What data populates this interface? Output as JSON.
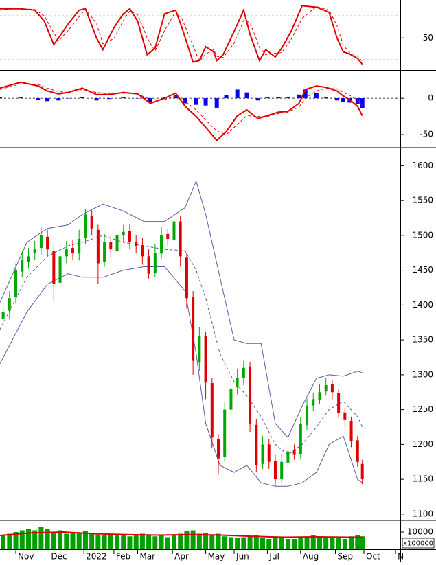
{
  "chart_data": [
    {
      "type": "line",
      "xlim": [
        0,
        253
      ],
      "ylim": [
        8,
        100
      ],
      "yticks": [
        50
      ],
      "reference_lines": [
        20,
        80
      ],
      "x": [
        0,
        9,
        13,
        22,
        28,
        34,
        37,
        43,
        50,
        54,
        61,
        65,
        72,
        78,
        82,
        87,
        93,
        98,
        104,
        111,
        115,
        122,
        126,
        130,
        135,
        137,
        141,
        148,
        154,
        158,
        164,
        168,
        174,
        178,
        184,
        191,
        200,
        208,
        213,
        217,
        221,
        226,
        229
      ],
      "series": [
        {
          "color": "#e00000",
          "style": "solid",
          "values": [
            90,
            90,
            90,
            88,
            73,
            41,
            50,
            69,
            88,
            90,
            50,
            34,
            64,
            83,
            90,
            73,
            27,
            36,
            83,
            88,
            64,
            17,
            19,
            38,
            31,
            19,
            27,
            59,
            88,
            55,
            19,
            34,
            24,
            36,
            59,
            94,
            92,
            85,
            50,
            31,
            28,
            22,
            14
          ]
        },
        {
          "color": "#e00000",
          "style": "dashed",
          "values": [
            88,
            90,
            90,
            89,
            80,
            57,
            46,
            60,
            79,
            89,
            70,
            42,
            49,
            74,
            87,
            82,
            50,
            32,
            60,
            86,
            76,
            40,
            18,
            28,
            34,
            25,
            23,
            43,
            74,
            71,
            37,
            27,
            29,
            30,
            48,
            77,
            93,
            88,
            67,
            40,
            30,
            25,
            18
          ]
        }
      ]
    },
    {
      "type": "combo",
      "xlim": [
        0,
        253
      ],
      "ylim": [
        -66,
        36
      ],
      "yticks": [
        0,
        -50
      ],
      "reference_lines": [
        0
      ],
      "x": [
        0,
        13,
        24,
        30,
        37,
        43,
        52,
        61,
        69,
        78,
        87,
        95,
        104,
        111,
        117,
        124,
        130,
        137,
        143,
        150,
        156,
        163,
        169,
        176,
        182,
        189,
        193,
        200,
        206,
        213,
        217,
        221,
        226,
        229
      ],
      "series": [
        {
          "type": "bar",
          "color": "#0000ff",
          "values": [
            2,
            2,
            -2,
            -4,
            -3,
            0,
            2,
            -3,
            -1,
            1,
            0,
            -5,
            2,
            4,
            -7,
            -9,
            -10,
            -13,
            4,
            12,
            8,
            -3,
            1,
            2,
            1,
            5,
            12,
            7,
            1,
            -3,
            -5,
            -6,
            -8,
            -14
          ]
        },
        {
          "type": "line",
          "color": "#e00000",
          "style": "solid",
          "values": [
            14,
            22,
            17,
            10,
            6,
            8,
            14,
            5,
            5,
            8,
            6,
            -7,
            0,
            7,
            -11,
            -25,
            -40,
            -58,
            -46,
            -24,
            -16,
            -28,
            -24,
            -19,
            -18,
            -7,
            12,
            17,
            15,
            10,
            3,
            -2,
            -11,
            -24
          ]
        },
        {
          "type": "line",
          "color": "#e00000",
          "style": "dashed",
          "values": [
            12,
            20,
            19,
            14,
            9,
            8,
            12,
            8,
            6,
            7,
            6,
            -2,
            -2,
            3,
            -4,
            -16,
            -30,
            -45,
            -50,
            -36,
            -24,
            -25,
            -25,
            -21,
            -19,
            -12,
            0,
            10,
            14,
            13,
            8,
            4,
            -3,
            -10
          ]
        }
      ]
    },
    {
      "type": "candlestick",
      "xlim": [
        0,
        253
      ],
      "ylim": [
        1092,
        1624
      ],
      "yticks": [
        1100,
        1150,
        1200,
        1250,
        1300,
        1350,
        1400,
        1450,
        1500,
        1550,
        1600
      ],
      "up_color": "#00a800",
      "down_color": "#e00000",
      "x": [
        2,
        6,
        10,
        14,
        18,
        22,
        26,
        30,
        34,
        38,
        42,
        46,
        50,
        54,
        58,
        62,
        66,
        70,
        74,
        78,
        82,
        86,
        90,
        94,
        98,
        102,
        106,
        110,
        114,
        118,
        122,
        126,
        130,
        134,
        138,
        142,
        146,
        150,
        154,
        158,
        162,
        166,
        170,
        174,
        178,
        182,
        186,
        190,
        194,
        198,
        202,
        206,
        210,
        214,
        218,
        222,
        226,
        229
      ],
      "open": [
        1380,
        1392,
        1412,
        1448,
        1462,
        1475,
        1482,
        1498,
        1478,
        1432,
        1470,
        1482,
        1474,
        1496,
        1528,
        1508,
        1462,
        1490,
        1478,
        1500,
        1506,
        1490,
        1486,
        1470,
        1446,
        1474,
        1502,
        1494,
        1520,
        1468,
        1412,
        1318,
        1356,
        1288,
        1208,
        1182,
        1250,
        1282,
        1296,
        1312,
        1228,
        1172,
        1200,
        1176,
        1150,
        1174,
        1192,
        1186,
        1228,
        1256,
        1264,
        1276,
        1286,
        1274,
        1246,
        1234,
        1206,
        1172
      ],
      "high": [
        1402,
        1420,
        1460,
        1478,
        1482,
        1492,
        1512,
        1508,
        1488,
        1480,
        1492,
        1494,
        1508,
        1538,
        1536,
        1515,
        1502,
        1500,
        1512,
        1515,
        1516,
        1500,
        1496,
        1480,
        1488,
        1512,
        1510,
        1532,
        1528,
        1475,
        1420,
        1368,
        1362,
        1296,
        1215,
        1262,
        1292,
        1308,
        1320,
        1318,
        1236,
        1212,
        1208,
        1185,
        1185,
        1198,
        1200,
        1240,
        1266,
        1274,
        1286,
        1296,
        1292,
        1280,
        1252,
        1240,
        1212,
        1178
      ],
      "low": [
        1370,
        1380,
        1402,
        1440,
        1452,
        1465,
        1472,
        1470,
        1405,
        1422,
        1460,
        1465,
        1464,
        1488,
        1500,
        1430,
        1455,
        1468,
        1470,
        1490,
        1480,
        1475,
        1458,
        1438,
        1440,
        1466,
        1485,
        1486,
        1455,
        1395,
        1300,
        1305,
        1265,
        1195,
        1158,
        1175,
        1240,
        1272,
        1285,
        1218,
        1160,
        1165,
        1165,
        1140,
        1145,
        1168,
        1178,
        1180,
        1220,
        1248,
        1258,
        1270,
        1265,
        1238,
        1225,
        1196,
        1168,
        1143
      ],
      "close": [
        1390,
        1410,
        1450,
        1465,
        1470,
        1480,
        1500,
        1480,
        1430,
        1470,
        1480,
        1475,
        1495,
        1530,
        1510,
        1460,
        1490,
        1480,
        1500,
        1505,
        1490,
        1485,
        1470,
        1445,
        1475,
        1500,
        1495,
        1520,
        1470,
        1410,
        1320,
        1355,
        1290,
        1210,
        1180,
        1250,
        1280,
        1295,
        1310,
        1230,
        1170,
        1200,
        1175,
        1150,
        1175,
        1190,
        1185,
        1230,
        1255,
        1265,
        1275,
        1285,
        1275,
        1245,
        1235,
        1205,
        1175,
        1150
      ],
      "overlays": {
        "x": [
          0,
          17,
          30,
          43,
          52,
          65,
          78,
          91,
          104,
          117,
          124,
          130,
          139,
          148,
          156,
          165,
          174,
          182,
          191,
          200,
          208,
          217,
          226,
          229
        ],
        "series": [
          {
            "color": "#5a5aa8",
            "style": "solid",
            "values": [
              1404,
              1490,
              1510,
              1515,
              1530,
              1545,
              1535,
              1520,
              1520,
              1540,
              1578,
              1530,
              1440,
              1350,
              1345,
              1345,
              1230,
              1210,
              1255,
              1295,
              1300,
              1298,
              1305,
              1303
            ]
          },
          {
            "color": "#5a5aa8",
            "style": "dashed",
            "values": [
              1365,
              1440,
              1470,
              1485,
              1490,
              1500,
              1490,
              1485,
              1480,
              1478,
              1450,
              1410,
              1330,
              1290,
              1270,
              1240,
              1200,
              1185,
              1200,
              1225,
              1250,
              1262,
              1240,
              1225
            ]
          },
          {
            "color": "#5a5aa8",
            "style": "solid",
            "values": [
              1316,
              1390,
              1430,
              1445,
              1440,
              1440,
              1450,
              1455,
              1455,
              1420,
              1330,
              1230,
              1170,
              1160,
              1170,
              1145,
              1140,
              1140,
              1145,
              1160,
              1200,
              1212,
              1150,
              1145
            ]
          }
        ]
      }
    },
    {
      "type": "bar",
      "xlim": [
        0,
        253
      ],
      "ylim": [
        0,
        16000
      ],
      "yticks": [
        10000
      ],
      "unit_label": "x100000",
      "color": "#00a000",
      "xticks": [
        {
          "value": 10,
          "label": "Nov"
        },
        {
          "value": 31,
          "label": "Dec"
        },
        {
          "value": 53,
          "label": "2022"
        },
        {
          "value": 72,
          "label": "Feb"
        },
        {
          "value": 87,
          "label": "Mar"
        },
        {
          "value": 109,
          "label": "Apr"
        },
        {
          "value": 130,
          "label": "May"
        },
        {
          "value": 148,
          "label": "Jun"
        },
        {
          "value": 169,
          "label": "Jul"
        },
        {
          "value": 190,
          "label": "Aug"
        },
        {
          "value": 212,
          "label": "Sep"
        },
        {
          "value": 230,
          "label": "Oct"
        },
        {
          "value": 250,
          "label": "N"
        }
      ],
      "x": [
        2,
        6,
        10,
        14,
        18,
        22,
        26,
        30,
        34,
        38,
        42,
        46,
        50,
        54,
        58,
        62,
        66,
        70,
        74,
        78,
        82,
        86,
        90,
        94,
        98,
        102,
        106,
        110,
        114,
        118,
        122,
        126,
        130,
        134,
        138,
        142,
        146,
        150,
        154,
        158,
        162,
        166,
        170,
        174,
        178,
        182,
        186,
        190,
        194,
        198,
        202,
        206,
        210,
        214,
        218,
        222,
        226,
        229
      ],
      "values": [
        8000,
        9000,
        10000,
        11000,
        12000,
        11000,
        13000,
        12000,
        10000,
        11000,
        9000,
        10000,
        9500,
        10500,
        9000,
        8500,
        8000,
        9000,
        8500,
        8000,
        7500,
        8500,
        9000,
        8000,
        7500,
        8000,
        7000,
        8500,
        9000,
        10500,
        11000,
        9000,
        9500,
        8000,
        9000,
        7500,
        7000,
        6500,
        7000,
        7500,
        8000,
        6500,
        6000,
        6500,
        7000,
        6000,
        6000,
        6500,
        7000,
        8000,
        7500,
        7000,
        6500,
        7000,
        6000,
        7500,
        8000,
        7500
      ],
      "overlay": {
        "color": "#e00000",
        "x": [
          0,
          20,
          40,
          60,
          80,
          100,
          120,
          140,
          160,
          180,
          200,
          220,
          229
        ],
        "values": [
          8000,
          9500,
          10000,
          9000,
          8500,
          8200,
          8500,
          8200,
          7500,
          7000,
          7200,
          7000,
          7000
        ]
      }
    }
  ]
}
